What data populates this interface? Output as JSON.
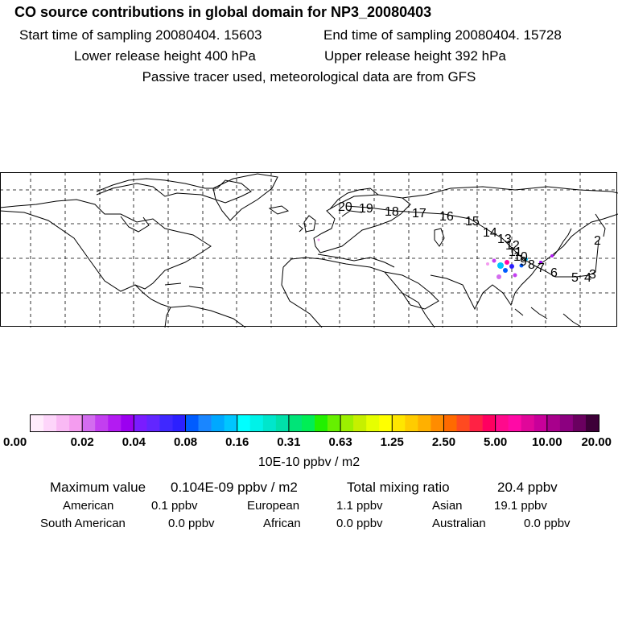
{
  "header": {
    "title": "CO  source contributions in global domain for NP3_20080403",
    "start_time": "Start time of sampling 20080404. 15603",
    "end_time": "End time of sampling 20080404. 15728",
    "lower_height": "Lower release height  400 hPa",
    "upper_height": "Upper release height  392 hPa",
    "note": "Passive tracer used, meteorological data are from GFS"
  },
  "map": {
    "trajectory_labels": [
      "20",
      "19",
      "18",
      "17",
      "16",
      "15",
      "14",
      "13",
      "12",
      "11",
      "10",
      "9",
      "8",
      "7",
      "6",
      "5",
      "4",
      "3",
      "2"
    ]
  },
  "colorbar": {
    "tick_labels": [
      "0.00",
      "0.02",
      "0.04",
      "0.08",
      "0.16",
      "0.31",
      "0.63",
      "1.25",
      "2.50",
      "5.00",
      "10.00",
      "20.00"
    ],
    "unit_label": "10E-10 ppbv / m2",
    "colors": [
      "#ffecfc",
      "#fdd5fa",
      "#f9b9f4",
      "#f49cef",
      "#d36cef",
      "#c33ff0",
      "#b31bf2",
      "#9b00f0",
      "#7a1cff",
      "#6226ff",
      "#3f28ff",
      "#2c20ff",
      "#005cff",
      "#1a86ff",
      "#00a8ff",
      "#00c6ff",
      "#00ffff",
      "#00f2e8",
      "#00e6cc",
      "#00e0aa",
      "#00e478",
      "#00ee55",
      "#22f000",
      "#66f000",
      "#9cf000",
      "#c6f000",
      "#e6ff00",
      "#ffff00",
      "#ffe600",
      "#ffcc00",
      "#ffb000",
      "#ff8c00",
      "#ff6a00",
      "#ff4a20",
      "#ff2244",
      "#ff0060",
      "#ff0a8c",
      "#ff0aa6",
      "#e0079a",
      "#c8009a",
      "#a8008c",
      "#8c0080",
      "#6a0060",
      "#3d0038"
    ]
  },
  "stats": {
    "max_label": "Maximum value",
    "max_value": "0.104E-09 ppbv / m2",
    "total_label": "Total mixing ratio",
    "total_value": "20.4 ppbv",
    "regions": [
      {
        "name": "American",
        "value": "0.1 ppbv"
      },
      {
        "name": "European",
        "value": "1.1 ppbv"
      },
      {
        "name": "Asian",
        "value": "19.1 ppbv"
      },
      {
        "name": "South American",
        "value": "0.0 ppbv"
      },
      {
        "name": "African",
        "value": "0.0 ppbv"
      },
      {
        "name": "Australian",
        "value": "0.0 ppbv"
      }
    ]
  }
}
